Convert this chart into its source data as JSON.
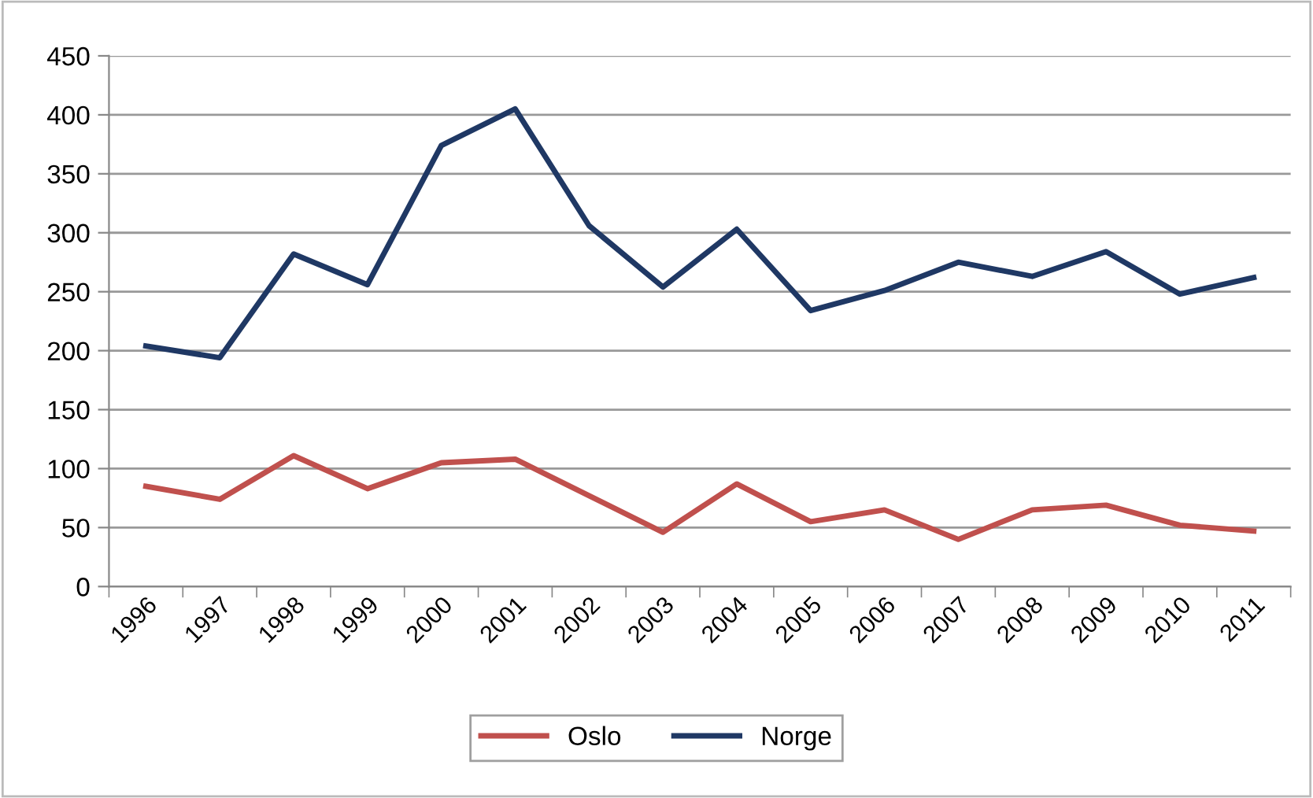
{
  "chart_data": {
    "type": "line",
    "categories": [
      "1996",
      "1997",
      "1998",
      "1999",
      "2000",
      "2001",
      "2002",
      "2003",
      "2004",
      "2005",
      "2006",
      "2007",
      "2008",
      "2009",
      "2010",
      "2011"
    ],
    "series": [
      {
        "name": "Oslo",
        "color": "#c0504d",
        "values": [
          85,
          74,
          111,
          83,
          105,
          108,
          77,
          46,
          87,
          55,
          65,
          40,
          65,
          69,
          52,
          47
        ]
      },
      {
        "name": "Norge",
        "color": "#1f3864",
        "values": [
          204,
          194,
          282,
          256,
          374,
          405,
          306,
          254,
          303,
          234,
          251,
          275,
          263,
          284,
          248,
          262
        ]
      }
    ],
    "ylim": [
      0,
      450
    ],
    "yticks": [
      0,
      50,
      100,
      150,
      200,
      250,
      300,
      350,
      400,
      450
    ],
    "grid": "y",
    "legend": "bottom",
    "marker": "none",
    "line_style": "solid"
  }
}
